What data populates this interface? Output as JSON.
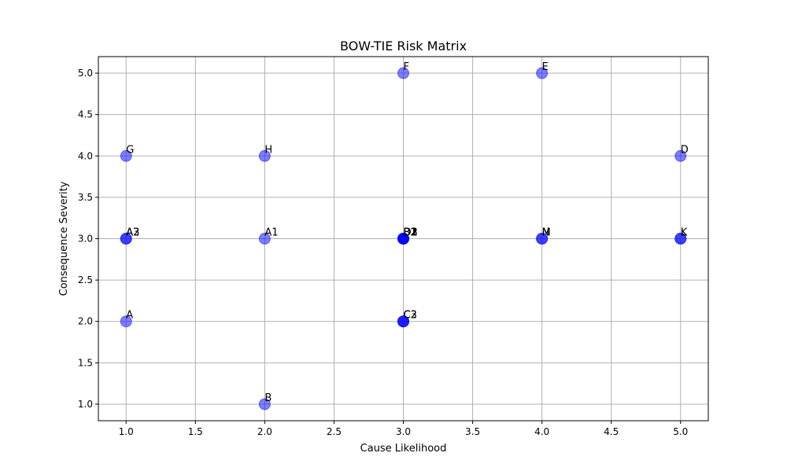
{
  "chart_data": {
    "type": "scatter",
    "title": "BOW-TIE Risk Matrix",
    "xlabel": "Cause Likelihood",
    "ylabel": "Consequence Severity",
    "xlim": [
      0.8,
      5.2
    ],
    "ylim": [
      0.8,
      5.2
    ],
    "xticks": [
      1.0,
      1.5,
      2.0,
      2.5,
      3.0,
      3.5,
      4.0,
      4.5,
      5.0
    ],
    "yticks": [
      1.0,
      1.5,
      2.0,
      2.5,
      3.0,
      3.5,
      4.0,
      4.5,
      5.0
    ],
    "grid": true,
    "legend": "none",
    "marker_color": "#0000ff",
    "marker_alpha": 0.5,
    "points": [
      {
        "label": "A",
        "x": 1,
        "y": 2
      },
      {
        "label": "B",
        "x": 2,
        "y": 1
      },
      {
        "label": "C",
        "x": 3,
        "y": 2
      },
      {
        "label": "D",
        "x": 5,
        "y": 4
      },
      {
        "label": "E",
        "x": 4,
        "y": 5
      },
      {
        "label": "F",
        "x": 3,
        "y": 5
      },
      {
        "label": "G",
        "x": 1,
        "y": 4
      },
      {
        "label": "H",
        "x": 2,
        "y": 4
      },
      {
        "label": "A1",
        "x": 2,
        "y": 3
      },
      {
        "label": "A2",
        "x": 1,
        "y": 3
      },
      {
        "label": "A3",
        "x": 1,
        "y": 3
      },
      {
        "label": "C2",
        "x": 3,
        "y": 2
      },
      {
        "label": "C3",
        "x": 3,
        "y": 2
      },
      {
        "label": "D1",
        "x": 3,
        "y": 3
      },
      {
        "label": "D2",
        "x": 3,
        "y": 3
      },
      {
        "label": "D3",
        "x": 3,
        "y": 3
      },
      {
        "label": "B1",
        "x": 3,
        "y": 3
      },
      {
        "label": "B2",
        "x": 3,
        "y": 3
      },
      {
        "label": "M",
        "x": 4,
        "y": 3
      },
      {
        "label": "N",
        "x": 4,
        "y": 3
      },
      {
        "label": "K",
        "x": 5,
        "y": 3
      },
      {
        "label": "L",
        "x": 5,
        "y": 3
      }
    ]
  }
}
